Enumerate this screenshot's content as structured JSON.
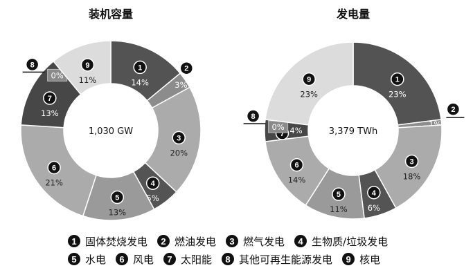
{
  "chart_data": [
    {
      "type": "pie",
      "title": "装机容量",
      "center_label": "1,030 GW",
      "categories": [
        "1",
        "2",
        "3",
        "4",
        "5",
        "6",
        "7",
        "8",
        "9"
      ],
      "values": [
        14,
        3,
        20,
        5,
        13,
        21,
        13,
        0,
        11
      ],
      "labels": [
        "14%",
        "3%",
        "20%",
        "5%",
        "13%",
        "21%",
        "13%",
        "0%",
        "11%"
      ]
    },
    {
      "type": "pie",
      "title": "发电量",
      "center_label": "3,379 TWh",
      "categories": [
        "1",
        "2",
        "3",
        "4",
        "5",
        "6",
        "7",
        "8",
        "9"
      ],
      "values": [
        23,
        1,
        18,
        6,
        11,
        14,
        4,
        0,
        23
      ],
      "labels": [
        "23%",
        "1%",
        "18%",
        "6%",
        "11%",
        "14%",
        "4%",
        "0%",
        "23%"
      ]
    }
  ],
  "colors": [
    "#535353",
    "#8c8c8c",
    "#ababab",
    "#545454",
    "#9a9a9a",
    "#ababab",
    "#474747",
    "#8a8a8a",
    "#dcdcdc"
  ],
  "legend": [
    {
      "num": "1",
      "label": "固体焚烧发电"
    },
    {
      "num": "2",
      "label": "燃油发电"
    },
    {
      "num": "3",
      "label": "燃气发电"
    },
    {
      "num": "4",
      "label": "生物质/垃圾发电"
    },
    {
      "num": "5",
      "label": "水电"
    },
    {
      "num": "6",
      "label": "风电"
    },
    {
      "num": "7",
      "label": "太阳能"
    },
    {
      "num": "8",
      "label": "其他可再生能源发电"
    },
    {
      "num": "9",
      "label": "核电"
    }
  ]
}
